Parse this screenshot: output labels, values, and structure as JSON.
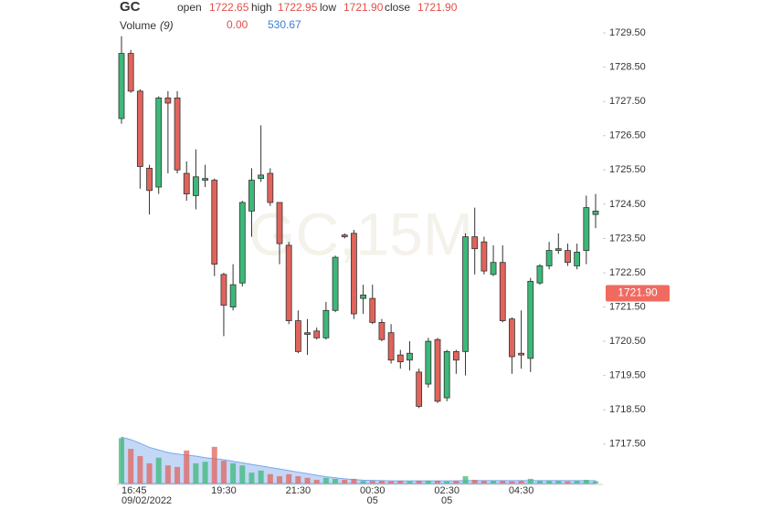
{
  "chart_data": {
    "type": "candlestick",
    "symbol": "GC",
    "ohlc": [
      {
        "name": "open",
        "value": "1722.65"
      },
      {
        "name": "high",
        "value": "1722.95"
      },
      {
        "name": "low",
        "value": "1721.90"
      },
      {
        "name": "close",
        "value": "1721.90"
      }
    ],
    "volume_title": "Volume",
    "volume_period": "(9)",
    "volume_value": "0.00",
    "volume_ma_value": "530.67",
    "watermark": "GC,15M",
    "categories": [
      "16:45",
      null,
      null,
      null,
      null,
      null,
      null,
      null,
      null,
      null,
      null,
      "19:30",
      null,
      null,
      null,
      null,
      null,
      null,
      null,
      "21:30",
      null,
      null,
      null,
      null,
      null,
      null,
      null,
      "00:30",
      null,
      null,
      null,
      null,
      null,
      null,
      null,
      "02:30",
      null,
      null,
      null,
      null,
      null,
      null,
      null,
      "04:30",
      null,
      null,
      null,
      null,
      null,
      null,
      null,
      null
    ],
    "date_labels": [
      "09/02/2022",
      null,
      null,
      null,
      null,
      null,
      null,
      null,
      null,
      null,
      null,
      null,
      null,
      null,
      null,
      null,
      null,
      null,
      null,
      null,
      null,
      null,
      null,
      null,
      null,
      null,
      null,
      "05",
      null,
      null,
      null,
      null,
      null,
      null,
      null,
      "05",
      null,
      null,
      null,
      null,
      null,
      null,
      null,
      null,
      null,
      null,
      null,
      null,
      null,
      null,
      null,
      null
    ],
    "open": [
      1727.0,
      1728.9,
      1727.8,
      1725.55,
      1725.0,
      1727.6,
      1727.6,
      1725.4,
      1724.75,
      1725.2,
      1725.2,
      1722.45,
      1721.5,
      1722.2,
      1724.3,
      1725.25,
      1725.4,
      1724.55,
      1723.3,
      1721.1,
      1720.75,
      1720.8,
      1720.6,
      1721.4,
      1723.6,
      1723.65,
      1721.75,
      1721.75,
      1721.05,
      1720.75,
      1720.1,
      1719.95,
      1719.6,
      1719.25,
      1720.55,
      1718.85,
      1720.2,
      1720.2,
      1723.55,
      1723.4,
      1722.45,
      1722.8,
      1721.15,
      1720.15,
      1720.0,
      1722.2,
      1722.7,
      1723.15,
      1723.15,
      1722.7,
      1723.15,
      1724.2
    ],
    "high": [
      1729.4,
      1729.0,
      1727.85,
      1725.65,
      1727.65,
      1727.8,
      1727.8,
      1725.75,
      1726.1,
      1725.65,
      1725.25,
      1722.5,
      1722.75,
      1724.6,
      1725.55,
      1726.8,
      1725.55,
      1724.55,
      1723.4,
      1721.4,
      1721.15,
      1720.9,
      1721.65,
      1723.0,
      1723.65,
      1723.75,
      1722.15,
      1722.15,
      1721.15,
      1721.0,
      1720.25,
      1720.5,
      1719.7,
      1720.6,
      1720.6,
      1720.25,
      1720.25,
      1723.65,
      1724.4,
      1723.55,
      1723.3,
      1723.3,
      1721.2,
      1721.4,
      1722.35,
      1722.75,
      1723.4,
      1723.65,
      1723.35,
      1723.35,
      1724.75,
      1724.8
    ],
    "low": [
      1726.85,
      1727.75,
      1724.95,
      1724.2,
      1724.8,
      1725.4,
      1725.4,
      1724.6,
      1724.35,
      1725.0,
      1722.4,
      1720.65,
      1721.4,
      1722.1,
      1723.55,
      1725.15,
      1724.45,
      1722.75,
      1721.0,
      1720.15,
      1720.1,
      1720.55,
      1720.55,
      1721.35,
      1723.5,
      1721.15,
      1721.3,
      1721.0,
      1720.5,
      1719.85,
      1719.7,
      1719.65,
      1718.55,
      1719.15,
      1718.7,
      1718.75,
      1719.55,
      1719.5,
      1722.45,
      1722.45,
      1722.4,
      1721.05,
      1719.55,
      1719.7,
      1719.6,
      1722.15,
      1722.6,
      1723.05,
      1722.7,
      1722.6,
      1722.75,
      1723.8
    ],
    "close": [
      1728.9,
      1727.8,
      1725.6,
      1724.9,
      1727.6,
      1727.45,
      1725.5,
      1724.8,
      1725.3,
      1725.25,
      1722.75,
      1721.55,
      1722.15,
      1724.55,
      1725.2,
      1725.35,
      1724.55,
      1723.35,
      1721.1,
      1720.2,
      1720.7,
      1720.6,
      1721.4,
      1722.95,
      1723.55,
      1721.3,
      1721.85,
      1721.05,
      1720.55,
      1719.95,
      1719.9,
      1720.15,
      1718.6,
      1720.5,
      1718.75,
      1720.2,
      1719.95,
      1723.55,
      1723.2,
      1722.55,
      1722.8,
      1721.1,
      1720.05,
      1720.1,
      1722.25,
      1722.7,
      1723.15,
      1723.2,
      1722.8,
      1723.1,
      1724.4,
      1724.3
    ],
    "volume": [
      8800,
      6700,
      5300,
      3900,
      5000,
      3500,
      3200,
      6400,
      3900,
      4200,
      7100,
      4400,
      3900,
      3500,
      2100,
      2500,
      1800,
      1400,
      1800,
      1400,
      1100,
      700,
      1100,
      900,
      700,
      900,
      500,
      500,
      500,
      400,
      500,
      400,
      500,
      500,
      500,
      400,
      500,
      1400,
      700,
      500,
      500,
      500,
      400,
      500,
      900,
      500,
      500,
      500,
      400,
      500,
      700,
      400
    ],
    "volume_ma": [
      9000,
      8500,
      7800,
      7000,
      6500,
      6000,
      5700,
      5500,
      5300,
      5000,
      4800,
      4600,
      4300,
      4000,
      3700,
      3400,
      3100,
      2800,
      2500,
      2200,
      1900,
      1600,
      1300,
      1100,
      900,
      750,
      650,
      600,
      550,
      500,
      500,
      500,
      500,
      500,
      500,
      500,
      500,
      550,
      550,
      550,
      550,
      550,
      550,
      550,
      550,
      550,
      550,
      550,
      550,
      550,
      530,
      530.67
    ],
    "ylim": [
      1716.35,
      1729.9
    ],
    "volume_ylim": [
      0,
      9200
    ],
    "yticks": [
      {
        "value": 1729.5,
        "label": "1729.50"
      },
      {
        "value": 1728.5,
        "label": "1728.50"
      },
      {
        "value": 1727.5,
        "label": "1727.50"
      },
      {
        "value": 1726.5,
        "label": "1726.50"
      },
      {
        "value": 1725.5,
        "label": "1725.50"
      },
      {
        "value": 1724.5,
        "label": "1724.50"
      },
      {
        "value": 1723.5,
        "label": "1723.50"
      },
      {
        "value": 1722.5,
        "label": "1722.50"
      },
      {
        "value": 1721.5,
        "label": "1721.50"
      },
      {
        "value": 1720.5,
        "label": "1720.50"
      },
      {
        "value": 1719.5,
        "label": "1719.50"
      },
      {
        "value": 1718.5,
        "label": "1718.50"
      },
      {
        "value": 1717.5,
        "label": "1717.50"
      }
    ],
    "price_label": {
      "value": 1721.9,
      "label": "1721.90"
    },
    "up_color": "#3cb878",
    "down_color": "#e0645c",
    "ma_color": "#7aa7ea",
    "grid": false
  }
}
